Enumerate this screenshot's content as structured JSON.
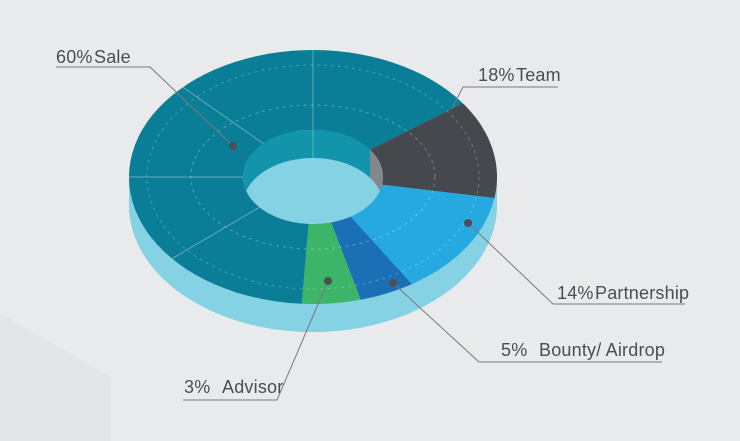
{
  "page": {
    "background_color": "#e9eaec",
    "corner_decor_color": "#e3e5e7"
  },
  "chart_data": {
    "type": "pie",
    "variant": "3d-donut",
    "title": "",
    "legend_position": "callout-labels",
    "categories": [
      "Sale",
      "Team",
      "Partnership",
      "Bounty/ Airdrop",
      "Advisor"
    ],
    "values": [
      60,
      18,
      14,
      5,
      3
    ],
    "slices": [
      {
        "label": "Sale",
        "value": 60,
        "pct_text": "60%",
        "color": "#0a7e97"
      },
      {
        "label": "Team",
        "value": 18,
        "pct_text": "18%",
        "color": "#45494e"
      },
      {
        "label": "Partnership",
        "value": 14,
        "pct_text": "14%",
        "color": "#26a9e0"
      },
      {
        "label": "Bounty/ Airdrop",
        "value": 5,
        "pct_text": "5%",
        "color": "#1b6fb5"
      },
      {
        "label": "Advisor",
        "value": 3,
        "pct_text": "3%",
        "color": "#3cb569"
      }
    ],
    "side_color": "#84d2e3",
    "inner_wall_sale_color": "#1295ab",
    "inner_wall_team_color": "#85878a",
    "callout_line_color": "#77797c",
    "callout_dot_color": "#4c5054",
    "label_text_color": "#4a4e54"
  }
}
